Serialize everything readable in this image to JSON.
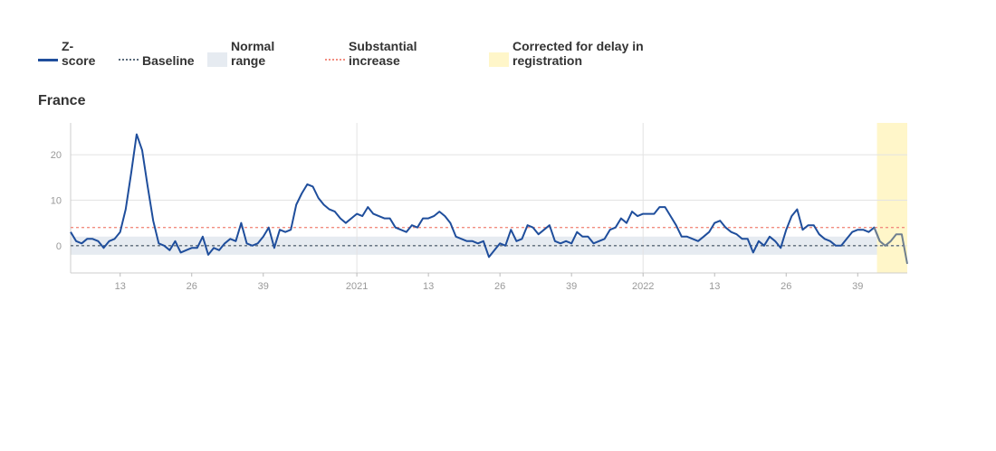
{
  "legend": {
    "zscore": "Z-\nscore",
    "baseline": "Baseline",
    "normal": "Normal\nrange",
    "substantial": "Substantial\nincrease",
    "corrected": "Corrected for delay in\nregistration"
  },
  "colors": {
    "zscore": "#1f4e9c",
    "zscore_corrected": "#6f7f8f",
    "baseline": "#5a6a7a",
    "normal_range": "#e6ebf1",
    "substantial": "#f28d80",
    "corrected": "#fff6c9",
    "grid": "#e3e3e3",
    "tick": "#999999"
  },
  "panel_title": "France",
  "chart_data": {
    "type": "line",
    "title": "France",
    "xlabel": "",
    "ylabel": "",
    "ylim": [
      -6,
      27
    ],
    "yticks": [
      0,
      10,
      20
    ],
    "baseline": 0,
    "normal_range": [
      -2,
      2
    ],
    "substantial_increase": 4,
    "x_ticks": [
      {
        "index": 9,
        "label": "13"
      },
      {
        "index": 22,
        "label": "26"
      },
      {
        "index": 35,
        "label": "39"
      },
      {
        "index": 52,
        "label": "2021"
      },
      {
        "index": 65,
        "label": "13"
      },
      {
        "index": 78,
        "label": "26"
      },
      {
        "index": 91,
        "label": "39"
      },
      {
        "index": 104,
        "label": "2022"
      },
      {
        "index": 117,
        "label": "13"
      },
      {
        "index": 130,
        "label": "26"
      },
      {
        "index": 143,
        "label": "39"
      }
    ],
    "corrected_from_index": 147,
    "series": [
      {
        "name": "Z-score",
        "values": [
          3.0,
          1.0,
          0.5,
          1.5,
          1.5,
          1.0,
          -0.5,
          1.0,
          1.5,
          3.0,
          8.0,
          16.0,
          24.5,
          21.0,
          13.0,
          5.5,
          0.5,
          0.0,
          -1.0,
          1.0,
          -1.5,
          -1.0,
          -0.5,
          -0.5,
          2.0,
          -2.0,
          -0.5,
          -1.0,
          0.5,
          1.5,
          1.0,
          5.0,
          0.5,
          0.0,
          0.5,
          2.0,
          4.0,
          -0.5,
          3.5,
          3.0,
          3.5,
          9.0,
          11.5,
          13.5,
          13.0,
          10.5,
          9.0,
          8.0,
          7.5,
          6.0,
          5.0,
          6.0,
          7.0,
          6.5,
          8.5,
          7.0,
          6.5,
          6.0,
          6.0,
          4.0,
          3.5,
          3.0,
          4.5,
          4.0,
          6.0,
          6.0,
          6.5,
          7.5,
          6.5,
          5.0,
          2.0,
          1.5,
          1.0,
          1.0,
          0.5,
          1.0,
          -2.5,
          -1.0,
          0.5,
          0.0,
          3.5,
          1.0,
          1.5,
          4.5,
          4.0,
          2.5,
          3.5,
          4.5,
          1.0,
          0.5,
          1.0,
          0.5,
          3.0,
          2.0,
          2.0,
          0.5,
          1.0,
          1.5,
          3.5,
          4.0,
          6.0,
          5.0,
          7.5,
          6.5,
          7.0,
          7.0,
          7.0,
          8.5,
          8.5,
          6.5,
          4.5,
          2.0,
          2.0,
          1.5,
          1.0,
          2.0,
          3.0,
          5.0,
          5.5,
          4.0,
          3.0,
          2.5,
          1.5,
          1.5,
          -1.5,
          1.0,
          0.0,
          2.0,
          1.0,
          -0.5,
          3.5,
          6.5,
          8.0,
          3.5,
          4.5,
          4.5,
          2.5,
          1.5,
          1.0,
          0.0,
          0.0,
          1.5,
          3.0,
          3.5,
          3.5,
          3.0,
          4.0,
          1.0,
          0.0,
          1.0,
          2.5,
          2.5,
          -4.0
        ]
      }
    ]
  }
}
